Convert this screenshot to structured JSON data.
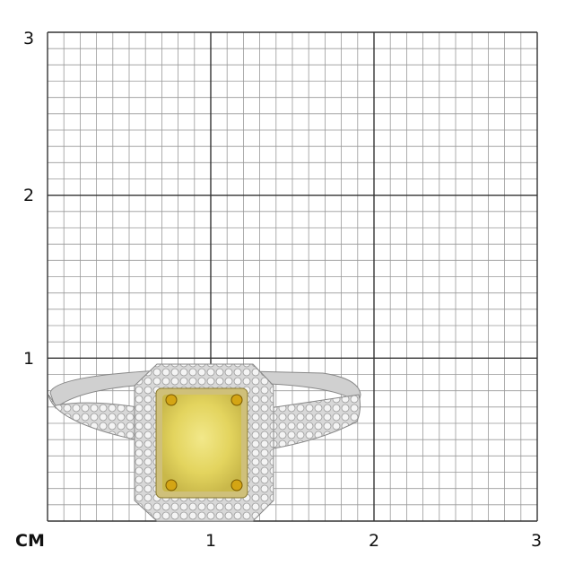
{
  "scale": {
    "unit": "CM",
    "x_ticks": [
      "1",
      "2",
      "3"
    ],
    "y_ticks": [
      "3",
      "2",
      "1"
    ],
    "minor_divisions_per_unit": 10
  },
  "subject": {
    "description_icon": "ring-photo",
    "center_stone_color": "#e8dc70",
    "metal_color": "#c9c9c9",
    "prong_color": "#d4a514"
  }
}
